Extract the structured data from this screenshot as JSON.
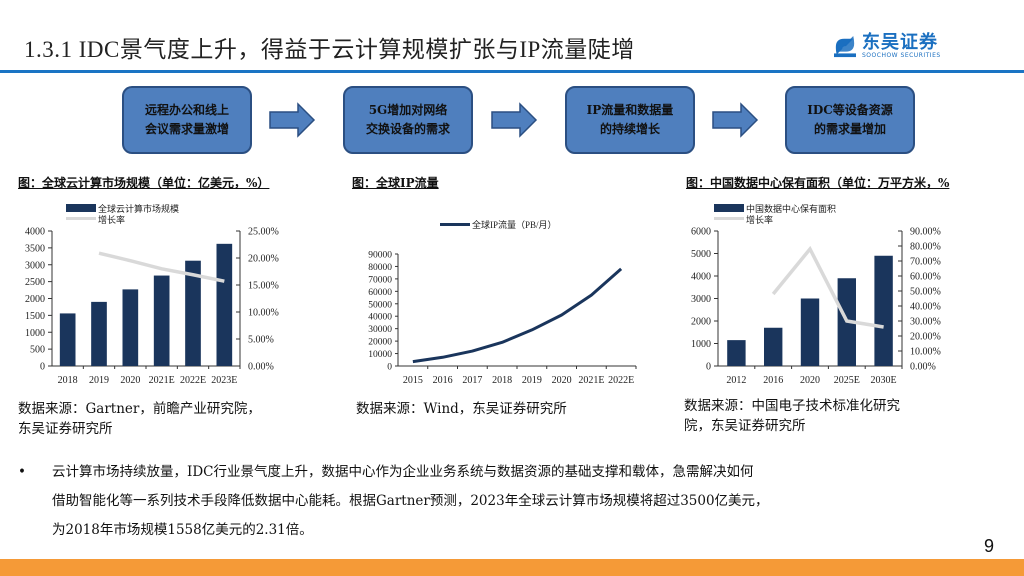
{
  "header": {
    "title": "1.3.1 IDC景气度上升，得益于云计算规模扩张与IP流量陡增",
    "logo_cn": "东吴证券",
    "logo_en": "SOOCHOW SECURITIES",
    "accent_color": "#1a74c4"
  },
  "flow": {
    "steps": [
      {
        "line1": "远程办公和线上",
        "line2": "会议需求量激增"
      },
      {
        "line1": "5G增加对网络",
        "line2": "交换设备的需求"
      },
      {
        "line1": "IP流量和数据量",
        "line2": "的持续增长"
      },
      {
        "line1": "IDC等设备资源",
        "line2": "的需求量增加"
      }
    ],
    "box_color": "#4f7fbe"
  },
  "charts": {
    "cloud": {
      "caption": "图：全球云计算市场规模（单位：亿美元，%）",
      "source_line1": "数据来源：Gartner，前瞻产业研究院，",
      "source_line2": "东吴证券研究所",
      "legend_bar": "全球云计算市场规模",
      "legend_line": "增长率"
    },
    "ip": {
      "caption": "图：全球IP流量",
      "source_line1": "数据来源：Wind，东吴证券研究所",
      "legend_line": "全球IP流量（PB/月）"
    },
    "dc": {
      "caption": "图：中国数据中心保有面积（单位：万平方米，%",
      "source_line1": "数据来源：中国电子技术标准化研究",
      "source_line2": "院，东吴证券研究所",
      "legend_bar": "中国数据中心保有面积",
      "legend_line": "增长率"
    }
  },
  "chart_data": [
    {
      "type": "bar",
      "title": "全球云计算市场规模（单位：亿美元，%）",
      "categories": [
        "2018",
        "2019",
        "2020",
        "2021E",
        "2022E",
        "2023E"
      ],
      "series": [
        {
          "name": "全球云计算市场规模",
          "type": "bar",
          "axis": "left",
          "values": [
            1558,
            1900,
            2270,
            2680,
            3120,
            3620
          ]
        },
        {
          "name": "增长率",
          "type": "line",
          "axis": "right",
          "values": [
            null,
            20.9,
            19.5,
            18.0,
            16.9,
            15.7
          ]
        }
      ],
      "ylim": [
        0,
        4000
      ],
      "yticks": [
        "0",
        "500",
        "1000",
        "1500",
        "2000",
        "2500",
        "3000",
        "3500",
        "4000"
      ],
      "y2lim": [
        0,
        25
      ],
      "y2ticks": [
        "0.00%",
        "5.00%",
        "10.00%",
        "15.00%",
        "20.00%",
        "25.00%"
      ],
      "xlabel": "",
      "ylabel": "",
      "legend_position": "top-left",
      "colors": {
        "bar": "#1a355c",
        "line": "#d9d9d9"
      }
    },
    {
      "type": "line",
      "title": "全球IP流量",
      "categories": [
        "2015",
        "2016",
        "2017",
        "2018",
        "2019",
        "2020",
        "2021E",
        "2022E"
      ],
      "series": [
        {
          "name": "全球IP流量（PB/月）",
          "values": [
            3500,
            7000,
            12000,
            19000,
            29000,
            41000,
            57000,
            78000
          ]
        }
      ],
      "ylim": [
        0,
        90000
      ],
      "yticks": [
        "0",
        "10000",
        "20000",
        "30000",
        "40000",
        "50000",
        "60000",
        "70000",
        "80000",
        "90000"
      ],
      "xlabel": "",
      "ylabel": "",
      "legend_position": "top",
      "colors": {
        "line": "#1a355c"
      }
    },
    {
      "type": "bar",
      "title": "中国数据中心保有面积（单位：万平方米，%）",
      "categories": [
        "2012",
        "2016",
        "2020",
        "2025E",
        "2030E"
      ],
      "series": [
        {
          "name": "中国数据中心保有面积",
          "type": "bar",
          "axis": "left",
          "values": [
            1150,
            1700,
            3000,
            3900,
            4900
          ]
        },
        {
          "name": "增长率",
          "type": "line",
          "axis": "right",
          "values": [
            null,
            48,
            78,
            30,
            26
          ]
        }
      ],
      "ylim": [
        0,
        6000
      ],
      "yticks": [
        "0",
        "1000",
        "2000",
        "3000",
        "4000",
        "5000",
        "6000"
      ],
      "y2lim": [
        0,
        90
      ],
      "y2ticks": [
        "0.00%",
        "10.00%",
        "20.00%",
        "30.00%",
        "40.00%",
        "50.00%",
        "60.00%",
        "70.00%",
        "80.00%",
        "90.00%"
      ],
      "xlabel": "",
      "ylabel": "",
      "legend_position": "top-left",
      "colors": {
        "bar": "#1a355c",
        "line": "#d9d9d9"
      }
    }
  ],
  "body": {
    "bullet": "•",
    "line1": "云计算市场持续放量，IDC行业景气度上升，数据中心作为企业业务系统与数据资源的基础支撑和载体，急需解决如何",
    "line2": "借助智能化等一系列技术手段降低数据中心能耗。根据Gartner预测，2023年全球云计算市场规模将超过3500亿美元，",
    "line3": "为2018年市场规模1558亿美元的2.31倍。"
  },
  "footer": {
    "page_number": "9",
    "bar_color": "#f59a37"
  }
}
